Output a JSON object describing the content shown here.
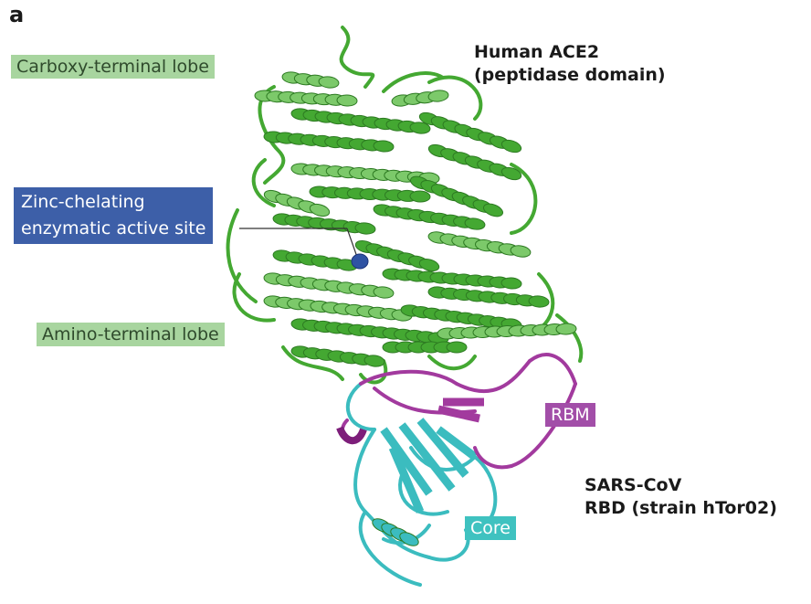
{
  "panel": {
    "letter": "a"
  },
  "titles": {
    "ace2_line1": "Human ACE2",
    "ace2_line2": "(peptidase domain)",
    "rbd_line1": "SARS-CoV",
    "rbd_line2": "RBD (strain hTor02)"
  },
  "labels": {
    "carboxy_lobe": "Carboxy-terminal lobe",
    "zinc_site_line1": "Zinc-chelating",
    "zinc_site_line2": "enzymatic active site",
    "amino_lobe": "Amino-terminal lobe",
    "rbm": "RBM",
    "core": "Core"
  },
  "colors": {
    "ace2_green": "#44a832",
    "ace2_green_light": "#7cc96a",
    "rbm_purple": "#a23a9e",
    "core_teal": "#3bbcbf",
    "zinc_blue": "#2f53a3",
    "label_green_bg": "#a8d59f",
    "label_blue_bg": "#3d5fa8"
  }
}
